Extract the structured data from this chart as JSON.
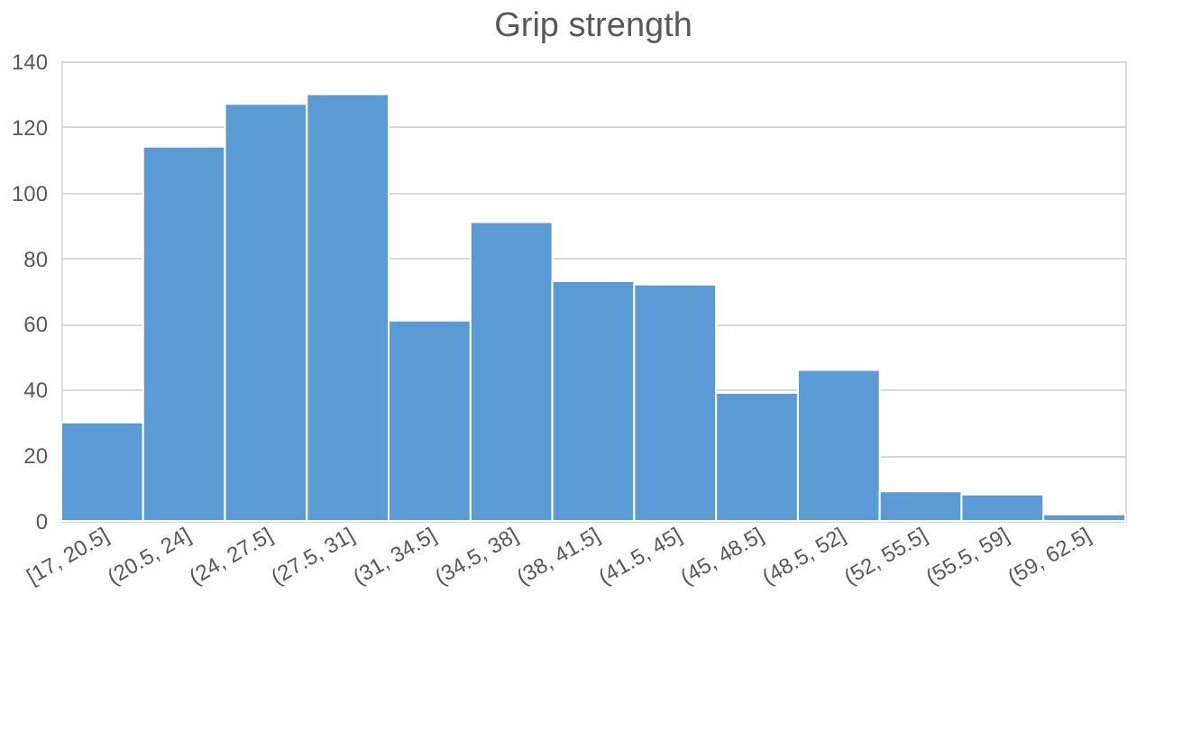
{
  "chart_data": {
    "type": "bar",
    "title": "Grip strength",
    "categories": [
      "[17, 20.5]",
      "(20.5, 24]",
      "(24, 27.5]",
      "(27.5, 31]",
      "(31, 34.5]",
      "(34.5, 38]",
      "(38, 41.5]",
      "(41.5, 45]",
      "(45, 48.5]",
      "(48.5, 52]",
      "(52, 55.5]",
      "(55.5, 59]",
      "(59, 62.5]"
    ],
    "values": [
      30,
      114,
      127,
      130,
      61,
      91,
      73,
      72,
      39,
      46,
      9,
      8,
      2
    ],
    "color": "#5b9bd5",
    "ylim": [
      0,
      140
    ],
    "yticks": [
      0,
      20,
      40,
      60,
      80,
      100,
      120,
      140
    ],
    "grid": "y"
  }
}
